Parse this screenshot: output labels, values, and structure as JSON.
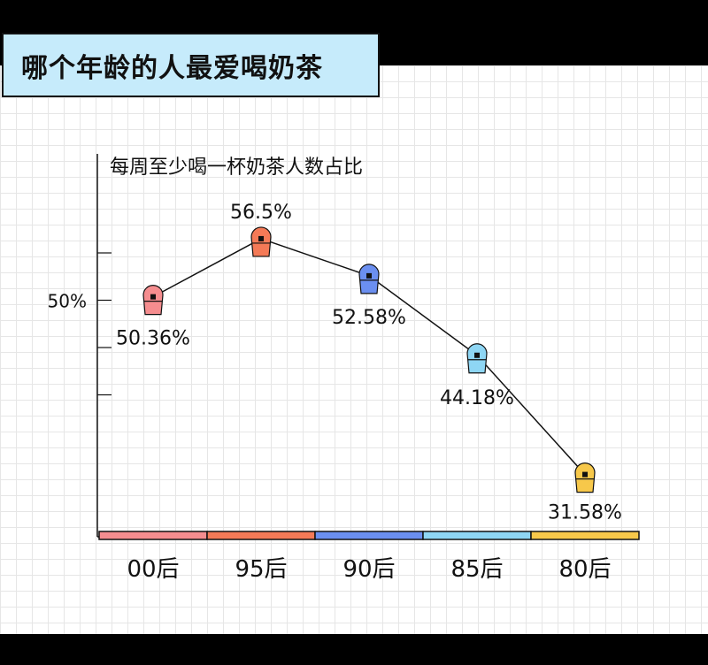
{
  "title": "哪个年龄的人最爱喝奶茶",
  "chart_data": {
    "type": "line",
    "title": "每周至少喝一杯奶茶人数占比",
    "categories": [
      "00后",
      "95后",
      "90后",
      "85后",
      "80后"
    ],
    "values": [
      50.36,
      56.5,
      52.58,
      44.18,
      31.58
    ],
    "value_labels": [
      "50.36%",
      "56.5%",
      "52.58%",
      "44.18%",
      "31.58%"
    ],
    "y_tick_label": "50%",
    "y_tick_value": 50,
    "ylim": [
      25,
      65
    ],
    "y_ticks": [
      55,
      50,
      45,
      40
    ],
    "colors": [
      "#f58d8f",
      "#f47a57",
      "#6b8ff0",
      "#8ed6f4",
      "#f7c84a"
    ],
    "grid": true
  }
}
